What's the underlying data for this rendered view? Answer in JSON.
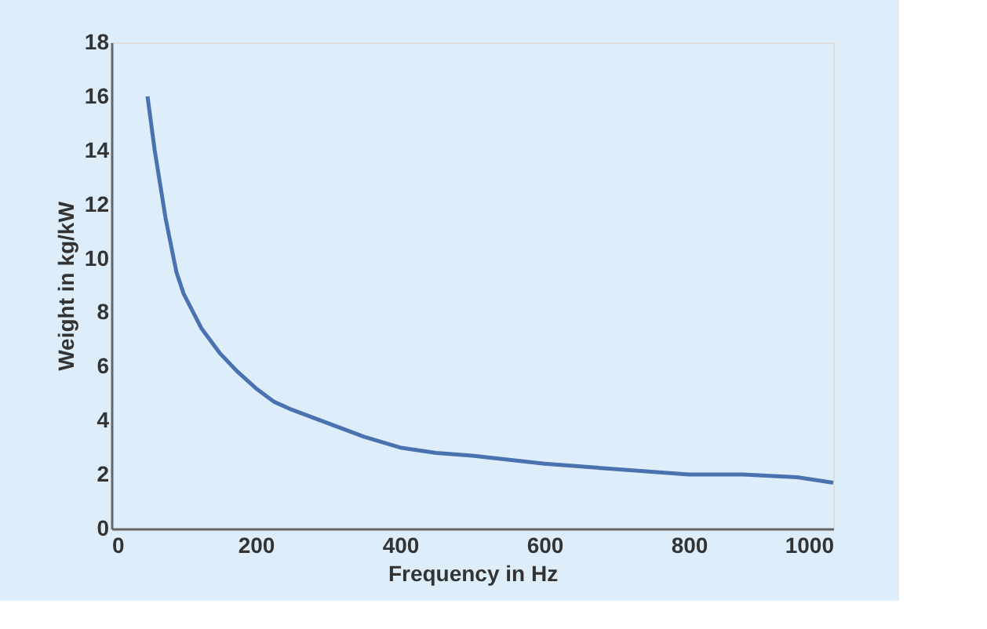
{
  "chart_data": {
    "type": "line",
    "xlabel": "Frequency in Hz",
    "ylabel": "Weight in kg/kW",
    "x": [
      50,
      60,
      75,
      90,
      100,
      125,
      150,
      175,
      200,
      225,
      250,
      300,
      350,
      400,
      450,
      500,
      600,
      700,
      800,
      875,
      950,
      1000
    ],
    "series": [
      {
        "color": "#4a72b0",
        "values": [
          16,
          14,
          11.5,
          9.5,
          8.7,
          7.4,
          6.5,
          5.8,
          5.2,
          4.7,
          4.4,
          3.9,
          3.4,
          3.0,
          2.8,
          2.7,
          2.4,
          2.2,
          2.0,
          2.0,
          1.9,
          1.7
        ]
      }
    ],
    "xlim": [
      0,
      1000
    ],
    "xticks": [
      0,
      200,
      400,
      600,
      800,
      1000
    ],
    "ylim": [
      0,
      18
    ],
    "yticks": [
      0,
      2,
      4,
      6,
      8,
      10,
      12,
      14,
      16,
      18
    ],
    "grid": false,
    "legend": false,
    "marker": "none",
    "line_style": "solid"
  }
}
